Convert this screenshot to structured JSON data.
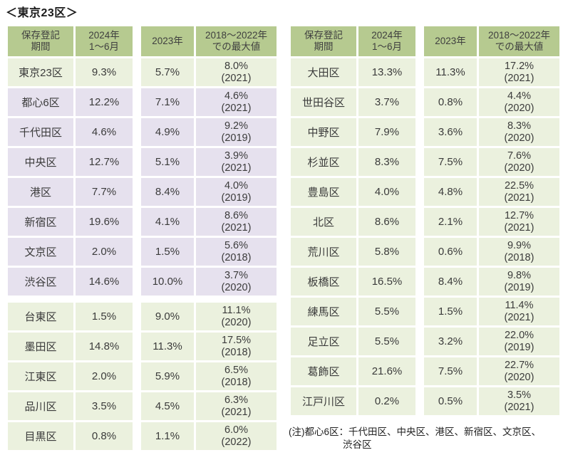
{
  "title": "＜東京23区＞",
  "note": {
    "line1": "(注)都心6区：千代田区、中央区、港区、新宿区、文京区、",
    "line2": "渋谷区"
  },
  "colors": {
    "header_bg": "#b6ca90",
    "row_green": "#ebf1de",
    "row_purple": "#e6e1ee",
    "text": "#3b3b3b"
  },
  "chart_data": {
    "type": "table",
    "title": "＜東京23区＞",
    "columns": [
      "保存登記期間",
      "2024年1～6月",
      "2023年",
      "2018～2022年での最大値"
    ],
    "header_lines": [
      [
        "保存登記",
        "期間"
      ],
      [
        "2024年",
        "1～6月"
      ],
      [
        "2023年"
      ],
      [
        "2018～2022年",
        "での最大値"
      ]
    ],
    "tables": [
      {
        "id": "left",
        "group_break_after": 7,
        "rows": [
          {
            "ward": "東京23区",
            "v2024": "9.3%",
            "v2023": "5.7%",
            "max": "8.0%",
            "max_year": "(2021)",
            "style": "green"
          },
          {
            "ward": "都心6区",
            "v2024": "12.2%",
            "v2023": "7.1%",
            "max": "4.6%",
            "max_year": "(2021)",
            "style": "purple"
          },
          {
            "ward": "千代田区",
            "v2024": "4.6%",
            "v2023": "4.9%",
            "max": "9.2%",
            "max_year": "(2019)",
            "style": "purple"
          },
          {
            "ward": "中央区",
            "v2024": "12.7%",
            "v2023": "5.1%",
            "max": "3.9%",
            "max_year": "(2021)",
            "style": "purple"
          },
          {
            "ward": "港区",
            "v2024": "7.7%",
            "v2023": "8.4%",
            "max": "4.0%",
            "max_year": "(2019)",
            "style": "purple"
          },
          {
            "ward": "新宿区",
            "v2024": "19.6%",
            "v2023": "4.1%",
            "max": "8.6%",
            "max_year": "(2021)",
            "style": "purple"
          },
          {
            "ward": "文京区",
            "v2024": "2.0%",
            "v2023": "1.5%",
            "max": "5.6%",
            "max_year": "(2018)",
            "style": "purple"
          },
          {
            "ward": "渋谷区",
            "v2024": "14.6%",
            "v2023": "10.0%",
            "max": "3.7%",
            "max_year": "(2020)",
            "style": "purple"
          },
          {
            "ward": "台東区",
            "v2024": "1.5%",
            "v2023": "9.0%",
            "max": "11.1%",
            "max_year": "(2020)",
            "style": "green"
          },
          {
            "ward": "墨田区",
            "v2024": "14.8%",
            "v2023": "11.3%",
            "max": "17.5%",
            "max_year": "(2018)",
            "style": "green"
          },
          {
            "ward": "江東区",
            "v2024": "2.0%",
            "v2023": "5.9%",
            "max": "6.5%",
            "max_year": "(2018)",
            "style": "green"
          },
          {
            "ward": "品川区",
            "v2024": "3.5%",
            "v2023": "4.5%",
            "max": "6.3%",
            "max_year": "(2021)",
            "style": "green"
          },
          {
            "ward": "目黒区",
            "v2024": "0.8%",
            "v2023": "1.1%",
            "max": "6.0%",
            "max_year": "(2022)",
            "style": "green"
          }
        ]
      },
      {
        "id": "right",
        "group_break_after": -1,
        "rows": [
          {
            "ward": "大田区",
            "v2024": "13.3%",
            "v2023": "11.3%",
            "max": "17.2%",
            "max_year": "(2021)",
            "style": "green"
          },
          {
            "ward": "世田谷区",
            "v2024": "3.7%",
            "v2023": "0.8%",
            "max": "4.4%",
            "max_year": "(2020)",
            "style": "green"
          },
          {
            "ward": "中野区",
            "v2024": "7.9%",
            "v2023": "3.6%",
            "max": "8.3%",
            "max_year": "(2020)",
            "style": "green"
          },
          {
            "ward": "杉並区",
            "v2024": "8.3%",
            "v2023": "7.5%",
            "max": "7.6%",
            "max_year": "(2020)",
            "style": "green"
          },
          {
            "ward": "豊島区",
            "v2024": "4.0%",
            "v2023": "4.8%",
            "max": "22.5%",
            "max_year": "(2021)",
            "style": "green"
          },
          {
            "ward": "北区",
            "v2024": "8.6%",
            "v2023": "2.1%",
            "max": "12.7%",
            "max_year": "(2021)",
            "style": "green"
          },
          {
            "ward": "荒川区",
            "v2024": "5.8%",
            "v2023": "0.6%",
            "max": "9.9%",
            "max_year": "(2018)",
            "style": "green"
          },
          {
            "ward": "板橋区",
            "v2024": "16.5%",
            "v2023": "8.4%",
            "max": "9.8%",
            "max_year": "(2019)",
            "style": "green"
          },
          {
            "ward": "練馬区",
            "v2024": "5.5%",
            "v2023": "1.5%",
            "max": "11.4%",
            "max_year": "(2021)",
            "style": "green"
          },
          {
            "ward": "足立区",
            "v2024": "5.5%",
            "v2023": "3.2%",
            "max": "22.0%",
            "max_year": "(2019)",
            "style": "green"
          },
          {
            "ward": "葛飾区",
            "v2024": "21.6%",
            "v2023": "7.5%",
            "max": "22.7%",
            "max_year": "(2020)",
            "style": "green"
          },
          {
            "ward": "江戸川区",
            "v2024": "0.2%",
            "v2023": "0.5%",
            "max": "3.5%",
            "max_year": "(2021)",
            "style": "green"
          }
        ]
      }
    ]
  }
}
